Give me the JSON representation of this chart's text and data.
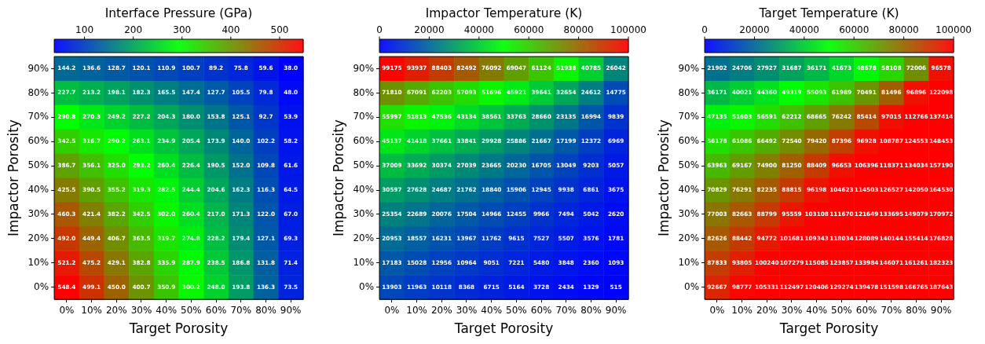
{
  "chart_data": [
    {
      "type": "heatmap",
      "clabel": "Interface Pressure (GPa)",
      "xlabel": "Target Porosity",
      "ylabel": "Impactor Porosity",
      "categories": [
        "0%",
        "10%",
        "20%",
        "30%",
        "40%",
        "50%",
        "60%",
        "70%",
        "80%",
        "90%"
      ],
      "y_categories": [
        "90%",
        "80%",
        "70%",
        "60%",
        "50%",
        "40%",
        "30%",
        "20%",
        "10%",
        "0%"
      ],
      "clim": [
        38,
        548.4
      ],
      "cticks": [
        100,
        200,
        300,
        400,
        500
      ],
      "cells": [
        [
          144.2,
          136.6,
          128.7,
          120.1,
          110.9,
          100.7,
          89.2,
          75.8,
          59.6,
          38.0
        ],
        [
          227.7,
          213.2,
          198.1,
          182.3,
          165.5,
          147.4,
          127.7,
          105.5,
          79.8,
          48.0
        ],
        [
          290.8,
          270.3,
          249.2,
          227.2,
          204.3,
          180.0,
          153.8,
          125.1,
          92.7,
          53.9
        ],
        [
          342.5,
          316.7,
          290.2,
          263.1,
          234.9,
          205.4,
          173.9,
          140.0,
          102.2,
          58.2
        ],
        [
          386.7,
          356.1,
          325.0,
          293.2,
          260.4,
          226.4,
          190.5,
          152.0,
          109.8,
          61.6
        ],
        [
          425.5,
          390.5,
          355.2,
          319.3,
          282.5,
          244.4,
          204.6,
          162.3,
          116.3,
          64.5
        ],
        [
          460.3,
          421.4,
          382.2,
          342.5,
          302.0,
          260.4,
          217.0,
          171.3,
          122.0,
          67.0
        ],
        [
          492.0,
          449.4,
          406.7,
          363.5,
          319.7,
          274.8,
          228.2,
          179.4,
          127.1,
          69.3
        ],
        [
          521.2,
          475.2,
          429.1,
          382.8,
          335.9,
          287.9,
          238.5,
          186.8,
          131.8,
          71.4
        ],
        [
          548.4,
          499.1,
          450.0,
          400.7,
          350.9,
          300.2,
          248.0,
          193.8,
          136.3,
          73.5
        ]
      ],
      "cell_labels": [
        [
          "144.2",
          "136.6",
          "128.7",
          "120.1",
          "110.9",
          "100.7",
          "89.2",
          "75.8",
          "59.6",
          "38.0"
        ],
        [
          "227.7",
          "213.2",
          "198.1",
          "182.3",
          "165.5",
          "147.4",
          "127.7",
          "105.5",
          "79.8",
          "48.0"
        ],
        [
          "290.8",
          "270.3",
          "249.2",
          "227.2",
          "204.3",
          "180.0",
          "153.8",
          "125.1",
          "92.7",
          "53.9"
        ],
        [
          "342.5",
          "316.7",
          "290.2",
          "263.1",
          "234.9",
          "205.4",
          "173.9",
          "140.0",
          "102.2",
          "58.2"
        ],
        [
          "386.7",
          "356.1",
          "325.0",
          "293.2",
          "260.4",
          "226.4",
          "190.5",
          "152.0",
          "109.8",
          "61.6"
        ],
        [
          "425.5",
          "390.5",
          "355.2",
          "319.3",
          "282.5",
          "244.4",
          "204.6",
          "162.3",
          "116.3",
          "64.5"
        ],
        [
          "460.3",
          "421.4",
          "382.2",
          "342.5",
          "302.0",
          "260.4",
          "217.0",
          "171.3",
          "122.0",
          "67.0"
        ],
        [
          "492.0",
          "449.4",
          "406.7",
          "363.5",
          "319.7",
          "274.8",
          "228.2",
          "179.4",
          "127.1",
          "69.3"
        ],
        [
          "521.2",
          "475.2",
          "429.1",
          "382.8",
          "335.9",
          "287.9",
          "238.5",
          "186.8",
          "131.8",
          "71.4"
        ],
        [
          "548.4",
          "499.1",
          "450.0",
          "400.7",
          "350.9",
          "300.2",
          "248.0",
          "193.8",
          "136.3",
          "73.5"
        ]
      ]
    },
    {
      "type": "heatmap",
      "data_labels": true,
      "clabel": "Impactor Temperature (K)",
      "xlabel": "Target Porosity",
      "ylabel": "Impactor Porosity",
      "categories": [
        "0%",
        "10%",
        "20%",
        "30%",
        "40%",
        "50%",
        "60%",
        "70%",
        "80%",
        "90%"
      ],
      "y_categories": [
        "90%",
        "80%",
        "70%",
        "60%",
        "50%",
        "40%",
        "30%",
        "20%",
        "10%",
        "0%"
      ],
      "clim": [
        0,
        100000
      ],
      "cticks": [
        0,
        20000,
        40000,
        60000,
        80000,
        100000
      ],
      "cells": [
        [
          99175,
          93937,
          88403,
          82492,
          76092,
          69047,
          61124,
          51938,
          40785,
          26042
        ],
        [
          71810,
          67091,
          62203,
          57093,
          51696,
          45921,
          39641,
          32654,
          24612,
          14775
        ],
        [
          55997,
          51813,
          47536,
          43134,
          38561,
          33763,
          28660,
          23135,
          16994,
          9839
        ],
        [
          45137,
          41418,
          37661,
          33841,
          29928,
          25886,
          21667,
          17199,
          12372,
          6969
        ],
        [
          37009,
          33692,
          30374,
          27039,
          23665,
          20230,
          16705,
          13049,
          9203,
          5057
        ],
        [
          30597,
          27628,
          24687,
          21762,
          18840,
          15906,
          12945,
          9938,
          6861,
          3675
        ],
        [
          25354,
          22689,
          20076,
          17504,
          14966,
          12455,
          9966,
          7494,
          5042,
          2620
        ],
        [
          20953,
          18557,
          16231,
          13967,
          11762,
          9615,
          7527,
          5507,
          3576,
          1781
        ],
        [
          17183,
          15028,
          12956,
          10964,
          9051,
          7221,
          5480,
          3848,
          2360,
          1093
        ],
        [
          13903,
          11963,
          10118,
          8368,
          6715,
          5164,
          3728,
          2434,
          1329,
          515
        ]
      ]
    },
    {
      "type": "heatmap",
      "data_labels": true,
      "clabel": "Target Temperature (K)",
      "xlabel": "Target Porosity",
      "ylabel": "Impactor Porosity",
      "categories": [
        "0%",
        "10%",
        "20%",
        "30%",
        "40%",
        "50%",
        "60%",
        "70%",
        "80%",
        "90%"
      ],
      "y_categories": [
        "90%",
        "80%",
        "70%",
        "60%",
        "50%",
        "40%",
        "30%",
        "20%",
        "10%",
        "0%"
      ],
      "clim": [
        0,
        100000
      ],
      "cticks": [
        0,
        20000,
        40000,
        60000,
        80000,
        100000
      ],
      "cells": [
        [
          21902,
          24706,
          27927,
          31687,
          36171,
          41673,
          48678,
          58108,
          72006,
          96578
        ],
        [
          36171,
          40021,
          44360,
          49319,
          55093,
          61989,
          70491,
          81496,
          96896,
          122098
        ],
        [
          47135,
          51603,
          56591,
          62212,
          68665,
          76242,
          85414,
          97015,
          112766,
          137414
        ],
        [
          56178,
          61086,
          66492,
          72540,
          79420,
          87396,
          96928,
          108787,
          124553,
          148453
        ],
        [
          63963,
          69167,
          74900,
          81250,
          88409,
          96653,
          106396,
          118371,
          134034,
          157190
        ],
        [
          70829,
          76291,
          82235,
          88815,
          96198,
          104623,
          114503,
          126527,
          142050,
          164530
        ],
        [
          77003,
          82663,
          88799,
          95559,
          103108,
          111670,
          121649,
          133695,
          149079,
          170972
        ],
        [
          82626,
          88442,
          94772,
          101681,
          109343,
          118034,
          128089,
          140144,
          155414,
          176828
        ],
        [
          87833,
          93805,
          100240,
          107279,
          115085,
          123857,
          133984,
          146071,
          161261,
          182323
        ],
        [
          92667,
          98777,
          105331,
          112497,
          120406,
          129274,
          139478,
          151598,
          166765,
          187643
        ]
      ]
    }
  ]
}
